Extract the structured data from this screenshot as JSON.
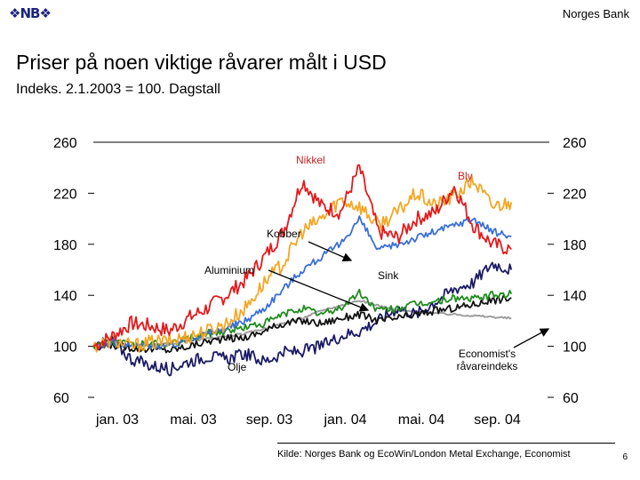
{
  "header": {
    "logo_text": "NB",
    "bank_name": "Norges Bank"
  },
  "title": "Priser på noen viktige råvarer målt i USD",
  "subtitle": "Indeks. 2.1.2003 = 100. Dagstall",
  "footer": {
    "source": "Kilde: Norges Bank og EcoWin/London Metal Exchange, Economist",
    "page_number": "6"
  },
  "chart_data": {
    "type": "line",
    "ylim": [
      60,
      260
    ],
    "yticks": [
      60,
      100,
      140,
      180,
      220,
      260
    ],
    "ytick_labels": [
      "60",
      "100",
      "140",
      "180",
      "220",
      "260"
    ],
    "xlim": [
      0,
      24
    ],
    "xticks": [
      0,
      4,
      8,
      12,
      16,
      20
    ],
    "xtick_labels": [
      "jan. 03",
      "mai. 03",
      "sep. 03",
      "jan. 04",
      "mai. 04",
      "sep. 04"
    ],
    "annotations": [
      {
        "text": "Nikkel",
        "color": "#cc2222"
      },
      {
        "text": "Bly",
        "color": "#cc2222"
      },
      {
        "text": "Kobber",
        "color": "#000000"
      },
      {
        "text": "Aluminium",
        "color": "#000000"
      },
      {
        "text": "Sink",
        "color": "#000000"
      },
      {
        "text": "Olje",
        "color": "#000000"
      },
      {
        "text": "Economist's råvareindeks",
        "color": "#000000"
      }
    ],
    "series": [
      {
        "name": "Nikkel",
        "color": "#e31a1c",
        "x": [
          0,
          1,
          2,
          3,
          4,
          5,
          6,
          7,
          8,
          9,
          10,
          11,
          12,
          13,
          14,
          15,
          16,
          17,
          18,
          19,
          20,
          21,
          22
        ],
        "y": [
          100,
          108,
          118,
          116,
          112,
          122,
          130,
          140,
          152,
          170,
          190,
          230,
          210,
          205,
          240,
          190,
          185,
          200,
          205,
          225,
          195,
          180,
          176
        ]
      },
      {
        "name": "Bly",
        "color": "#f5a623",
        "x": [
          0,
          1,
          2,
          3,
          4,
          5,
          6,
          7,
          8,
          9,
          10,
          11,
          12,
          13,
          14,
          15,
          16,
          17,
          18,
          19,
          20,
          21,
          22
        ],
        "y": [
          100,
          105,
          100,
          103,
          104,
          108,
          112,
          118,
          130,
          150,
          165,
          190,
          200,
          215,
          210,
          195,
          205,
          220,
          210,
          218,
          230,
          210,
          213
        ]
      },
      {
        "name": "Kobber",
        "color": "#3a6fd8",
        "x": [
          0,
          1,
          2,
          3,
          4,
          5,
          6,
          7,
          8,
          9,
          10,
          11,
          12,
          13,
          14,
          15,
          16,
          17,
          18,
          19,
          20,
          21,
          22
        ],
        "y": [
          100,
          103,
          100,
          101,
          100,
          106,
          110,
          114,
          120,
          130,
          145,
          160,
          170,
          180,
          200,
          175,
          180,
          185,
          190,
          195,
          200,
          190,
          186
        ]
      },
      {
        "name": "Aluminium",
        "color": "#1e8c1e",
        "x": [
          0,
          1,
          2,
          3,
          4,
          5,
          6,
          7,
          8,
          9,
          10,
          11,
          12,
          13,
          14,
          15,
          16,
          17,
          18,
          19,
          20,
          21,
          22
        ],
        "y": [
          100,
          103,
          101,
          102,
          101,
          106,
          110,
          112,
          115,
          118,
          125,
          130,
          125,
          130,
          142,
          128,
          130,
          133,
          135,
          138,
          137,
          140,
          141
        ]
      },
      {
        "name": "Sink",
        "color": "#111111",
        "x": [
          0,
          1,
          2,
          3,
          4,
          5,
          6,
          7,
          8,
          9,
          10,
          11,
          12,
          13,
          14,
          15,
          16,
          17,
          18,
          19,
          20,
          21,
          22
        ],
        "y": [
          100,
          101,
          99,
          98,
          97,
          100,
          104,
          106,
          107,
          112,
          118,
          120,
          118,
          122,
          125,
          120,
          122,
          125,
          128,
          130,
          133,
          136,
          138
        ]
      },
      {
        "name": "Olje",
        "color": "#1a1a66",
        "x": [
          0,
          1,
          2,
          3,
          4,
          5,
          6,
          7,
          8,
          9,
          10,
          11,
          12,
          13,
          14,
          15,
          16,
          17,
          18,
          19,
          20,
          21,
          22
        ],
        "y": [
          100,
          104,
          90,
          85,
          82,
          88,
          92,
          90,
          94,
          88,
          95,
          96,
          100,
          108,
          112,
          120,
          130,
          125,
          135,
          145,
          150,
          165,
          160
        ]
      },
      {
        "name": "Economist's råvareindeks",
        "color": "#9e9e9e",
        "x": [
          0,
          1,
          2,
          3,
          4,
          5,
          6,
          7,
          8,
          9,
          10,
          11,
          12,
          13,
          14,
          15,
          16,
          17,
          18,
          19,
          20,
          21,
          22
        ],
        "y": [
          100,
          101,
          100,
          101,
          102,
          104,
          106,
          108,
          110,
          114,
          118,
          122,
          128,
          132,
          136,
          132,
          128,
          127,
          126,
          125,
          124,
          123,
          122
        ]
      }
    ]
  }
}
